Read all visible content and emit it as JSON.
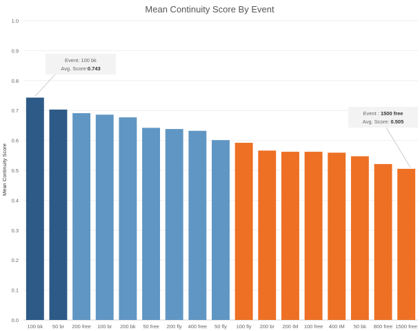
{
  "chart_data": {
    "type": "bar",
    "title": "Mean Continuity Score By Event",
    "xlabel": "",
    "ylabel": "Mean Continuity Score",
    "ylim": [
      0,
      1.0
    ],
    "yticks": [
      "0.0",
      "0.1",
      "0.2",
      "0.3",
      "0.4",
      "0.5",
      "0.6",
      "0.7",
      "0.8",
      "0.9",
      "1.0"
    ],
    "grid": true,
    "categories": [
      "100 bk",
      "50 br",
      "200 free",
      "100 br",
      "200 bk",
      "50 free",
      "200 fly",
      "400 free",
      "50 fly",
      "100 fly",
      "200 br",
      "200 IM",
      "100 free",
      "400 IM",
      "50 bk",
      "800 free",
      "1500 free"
    ],
    "values": [
      0.743,
      0.703,
      0.691,
      0.686,
      0.677,
      0.642,
      0.638,
      0.632,
      0.601,
      0.592,
      0.566,
      0.562,
      0.562,
      0.559,
      0.547,
      0.521,
      0.505
    ],
    "colors": [
      "#2d5a87",
      "#2d5a87",
      "#6096c3",
      "#6096c3",
      "#6096c3",
      "#6096c3",
      "#6096c3",
      "#6096c3",
      "#6096c3",
      "#ed7024",
      "#ed7024",
      "#ed7024",
      "#ed7024",
      "#ed7024",
      "#ed7024",
      "#ed7024",
      "#ed7024"
    ],
    "annotations": [
      {
        "index": 0,
        "line1_label": "Event: ",
        "line1_value": "100 bk",
        "line2_label": "Avg. Score:",
        "line2_value": "0.743"
      },
      {
        "index": 16,
        "line1_label": "Event : ",
        "line1_value": "1500 free",
        "line2_label": "Avg. Score: ",
        "line2_value": "0.505"
      }
    ]
  }
}
